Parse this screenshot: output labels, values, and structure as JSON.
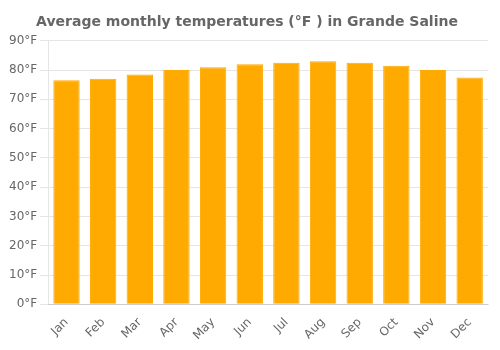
{
  "chart_data": {
    "type": "bar",
    "title": "Average monthly temperatures (°F ) in Grande Saline",
    "categories": [
      "Jan",
      "Feb",
      "Mar",
      "Apr",
      "May",
      "Jun",
      "Jul",
      "Aug",
      "Sep",
      "Oct",
      "Nov",
      "Dec"
    ],
    "values": [
      76.5,
      77.0,
      78.5,
      80.0,
      81.0,
      82.0,
      82.5,
      83.0,
      82.5,
      81.5,
      80.0,
      77.5
    ],
    "color": "#FFAA00",
    "ylim": [
      0,
      90
    ],
    "yticks": [
      {
        "value": 0,
        "label": "0°F"
      },
      {
        "value": 10,
        "label": "10°F"
      },
      {
        "value": 20,
        "label": "20°F"
      },
      {
        "value": 30,
        "label": "30°F"
      },
      {
        "value": 40,
        "label": "40°F"
      },
      {
        "value": 50,
        "label": "50°F"
      },
      {
        "value": 60,
        "label": "60°F"
      },
      {
        "value": 70,
        "label": "70°F"
      },
      {
        "value": 80,
        "label": "80°F"
      },
      {
        "value": 90,
        "label": "90°F"
      }
    ],
    "grid": true
  }
}
